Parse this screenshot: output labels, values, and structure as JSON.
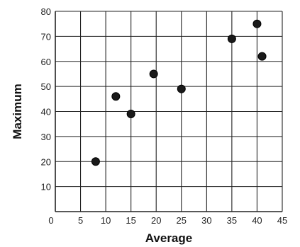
{
  "chart_data": {
    "type": "scatter",
    "title": "",
    "xlabel": "Average",
    "ylabel": "Maximum",
    "xlim": [
      0,
      45
    ],
    "ylim": [
      0,
      80
    ],
    "x_ticks": [
      0,
      5,
      10,
      15,
      20,
      25,
      30,
      35,
      40,
      45
    ],
    "y_ticks": [
      10,
      20,
      30,
      40,
      50,
      60,
      70,
      80
    ],
    "x_tick_labels": [
      "0",
      "5",
      "10",
      "15",
      "20",
      "25",
      "30",
      "35",
      "40",
      "45"
    ],
    "y_tick_labels": [
      "10",
      "20",
      "30",
      "40",
      "50",
      "60",
      "70",
      "80"
    ],
    "grid": true,
    "legend": "none",
    "point_color": "#1a1a1a",
    "points": [
      {
        "x": 8,
        "y": 20
      },
      {
        "x": 12,
        "y": 46
      },
      {
        "x": 15,
        "y": 39
      },
      {
        "x": 19.5,
        "y": 55
      },
      {
        "x": 25,
        "y": 49
      },
      {
        "x": 35,
        "y": 69
      },
      {
        "x": 40,
        "y": 75
      },
      {
        "x": 41,
        "y": 62
      }
    ]
  }
}
